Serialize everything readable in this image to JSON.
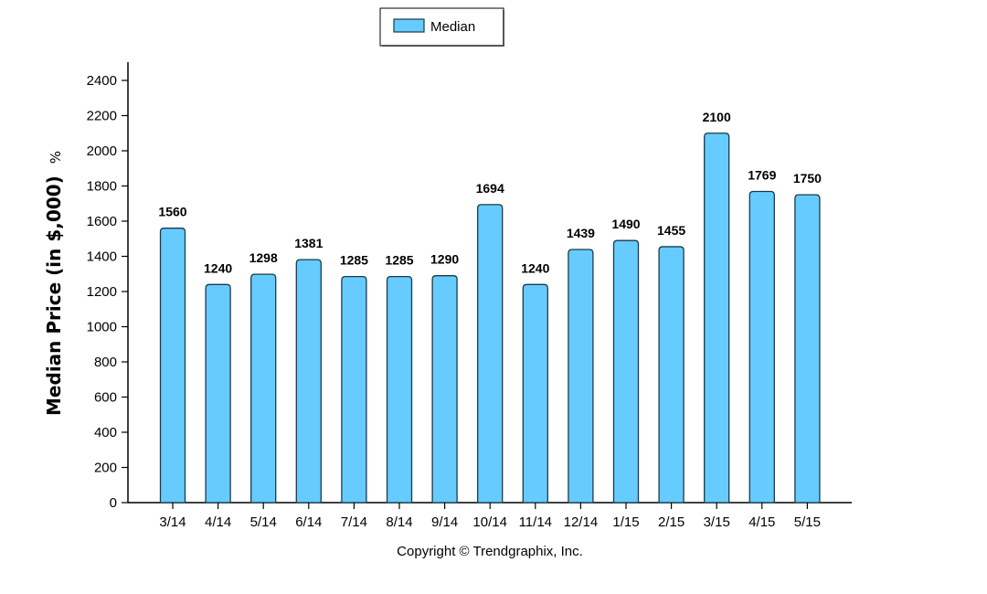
{
  "chart_data": {
    "type": "bar",
    "categories": [
      "3/14",
      "4/14",
      "5/14",
      "6/14",
      "7/14",
      "8/14",
      "9/14",
      "10/14",
      "11/14",
      "12/14",
      "1/15",
      "2/15",
      "3/15",
      "4/15",
      "5/15"
    ],
    "series": [
      {
        "name": "Median",
        "values": [
          1560,
          1240,
          1298,
          1381,
          1285,
          1285,
          1290,
          1694,
          1240,
          1439,
          1490,
          1455,
          2100,
          1769,
          1750
        ]
      }
    ],
    "title": "",
    "xlabel": "",
    "ylabel": "Median Price (in $,000)",
    "ylabel_suffix": "%",
    "ylim": [
      0,
      2500
    ],
    "yticks": [
      0,
      200,
      400,
      600,
      800,
      1000,
      1200,
      1400,
      1600,
      1800,
      2000,
      2200,
      2400
    ],
    "legend_position": "top-center",
    "grid": false,
    "colors": {
      "bar_fill": "#66ccff",
      "bar_stroke": "#1a3a4a",
      "axis": "#000000"
    }
  },
  "legend": {
    "label": "Median"
  },
  "footer": {
    "copyright": "Copyright © Trendgraphix, Inc."
  }
}
